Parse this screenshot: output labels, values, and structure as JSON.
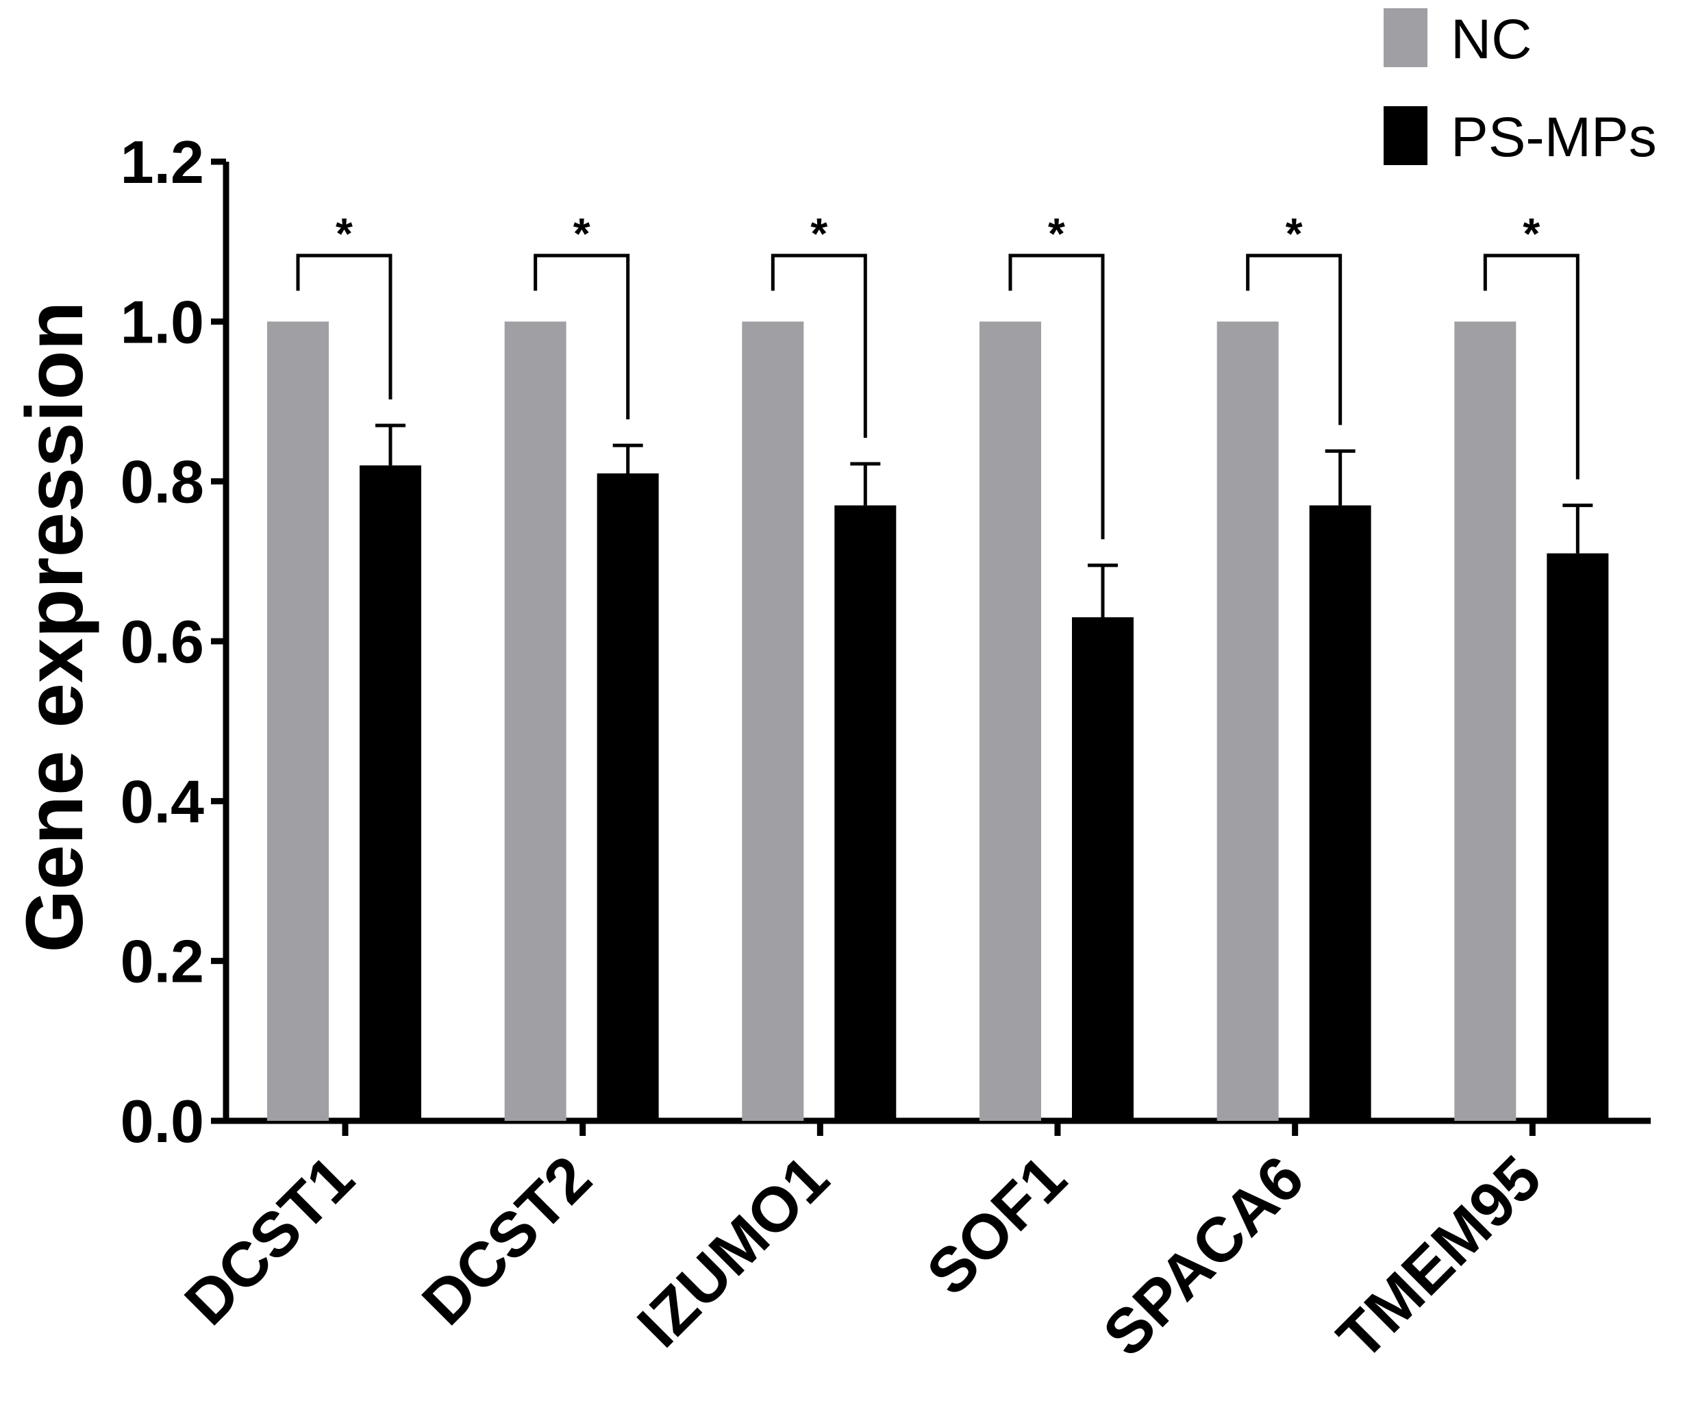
{
  "chart_data": {
    "type": "bar",
    "title": "",
    "xlabel": "",
    "ylabel": "Gene expression",
    "ylim": [
      0,
      1.2
    ],
    "yticks": [
      "0.0",
      "0.2",
      "0.4",
      "0.6",
      "0.8",
      "1.0",
      "1.2"
    ],
    "categories": [
      "DCST1",
      "DCST2",
      "IZUMO1",
      "SOF1",
      "SPACA6",
      "TMEM95"
    ],
    "series": [
      {
        "name": "NC",
        "color": "#a09fa4",
        "values": [
          1.0,
          1.0,
          1.0,
          1.0,
          1.0,
          1.0
        ],
        "errors": [
          0,
          0,
          0,
          0,
          0,
          0
        ]
      },
      {
        "name": "PS-MPs",
        "color": "#000000",
        "values": [
          0.82,
          0.81,
          0.77,
          0.63,
          0.77,
          0.71
        ],
        "errors": [
          0.05,
          0.035,
          0.052,
          0.065,
          0.068,
          0.06
        ]
      }
    ],
    "significance": [
      "*",
      "*",
      "*",
      "*",
      "*",
      "*"
    ],
    "legend": {
      "position": "top-right",
      "entries": [
        "NC",
        "PS-MPs"
      ]
    }
  }
}
